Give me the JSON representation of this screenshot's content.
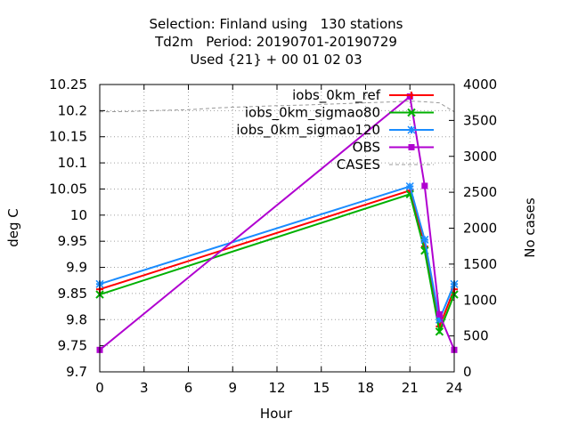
{
  "chart_data": {
    "type": "line",
    "title": [
      "Selection: Finland using   130 stations",
      "Td2m   Period: 20190701-20190729",
      "Used {21} + 00 01 02 03"
    ],
    "xlabel": "Hour",
    "ylabel": "deg C",
    "y2label": "No cases",
    "xlim": [
      0,
      24
    ],
    "ylim": [
      9.7,
      10.25
    ],
    "y2lim": [
      0,
      4000
    ],
    "xticks": [
      0,
      3,
      6,
      9,
      12,
      15,
      18,
      21,
      24
    ],
    "yticks": [
      9.7,
      9.75,
      9.8,
      9.85,
      9.9,
      9.95,
      10,
      10.05,
      10.1,
      10.15,
      10.2,
      10.25
    ],
    "ytick_labels": [
      "9.7",
      "9.75",
      "9.8",
      "9.85",
      "9.9",
      "9.95",
      "10",
      "10.05",
      "10.1",
      "10.15",
      "10.2",
      "10.25"
    ],
    "y2ticks": [
      0,
      500,
      1000,
      1500,
      2000,
      2500,
      3000,
      3500,
      4000
    ],
    "grid": true,
    "legend": "top-right",
    "series": [
      {
        "name": "iobs_0km_ref",
        "color": "#ff0000",
        "marker": "plus",
        "axis": "y",
        "x": [
          0,
          21,
          22,
          23,
          24
        ],
        "y": [
          9.858,
          10.047,
          9.94,
          9.787,
          9.858
        ]
      },
      {
        "name": "iobs_0km_sigmao80",
        "color": "#00b000",
        "marker": "cross",
        "axis": "y",
        "x": [
          0,
          21,
          22,
          23,
          24
        ],
        "y": [
          9.848,
          10.04,
          9.932,
          9.777,
          9.848
        ]
      },
      {
        "name": "iobs_0km_sigmao120",
        "color": "#1a8cff",
        "marker": "star",
        "axis": "y",
        "x": [
          0,
          21,
          22,
          23,
          24
        ],
        "y": [
          9.868,
          10.055,
          9.953,
          9.8,
          9.868
        ]
      },
      {
        "name": "OBS",
        "color": "#b000d0",
        "marker": "square",
        "axis": "y",
        "x": [
          0,
          21,
          22,
          23,
          24
        ],
        "y": [
          9.742,
          10.227,
          10.056,
          9.81,
          9.742
        ]
      },
      {
        "name": "CASES",
        "color": "#999999",
        "dash": true,
        "axis": "y2",
        "x": [
          0,
          2,
          4,
          6,
          8,
          10,
          12,
          14,
          16,
          18,
          20,
          21,
          22,
          23,
          24
        ],
        "y": [
          3620,
          3625,
          3640,
          3650,
          3675,
          3690,
          3705,
          3715,
          3730,
          3745,
          3760,
          3770,
          3760,
          3745,
          3620
        ]
      }
    ]
  }
}
